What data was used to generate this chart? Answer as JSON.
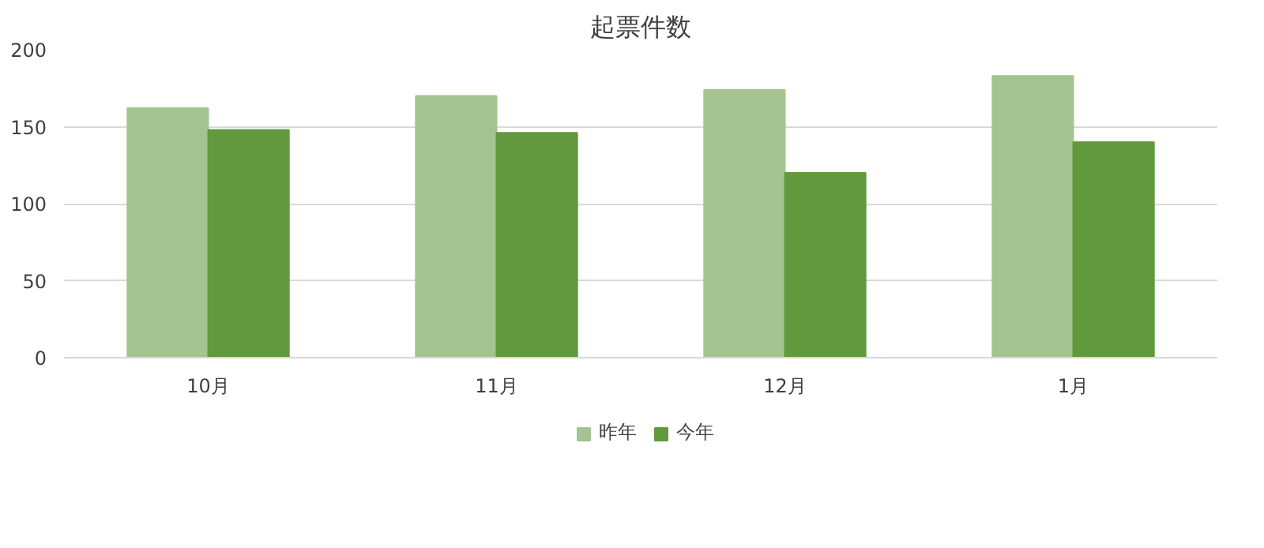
{
  "chart_data": {
    "type": "bar",
    "title": "起票件数",
    "categories": [
      "10月",
      "11月",
      "12月",
      "1月"
    ],
    "series": [
      {
        "name": "昨年",
        "color": "#a3c490",
        "values": [
          162,
          170,
          174,
          183
        ]
      },
      {
        "name": "今年",
        "color": "#62993e",
        "values": [
          148,
          146,
          120,
          140
        ]
      }
    ],
    "ylim": [
      0,
      200
    ],
    "yticks": [
      0,
      50,
      100,
      150,
      200
    ],
    "grid": "y",
    "legend": "bottom"
  }
}
